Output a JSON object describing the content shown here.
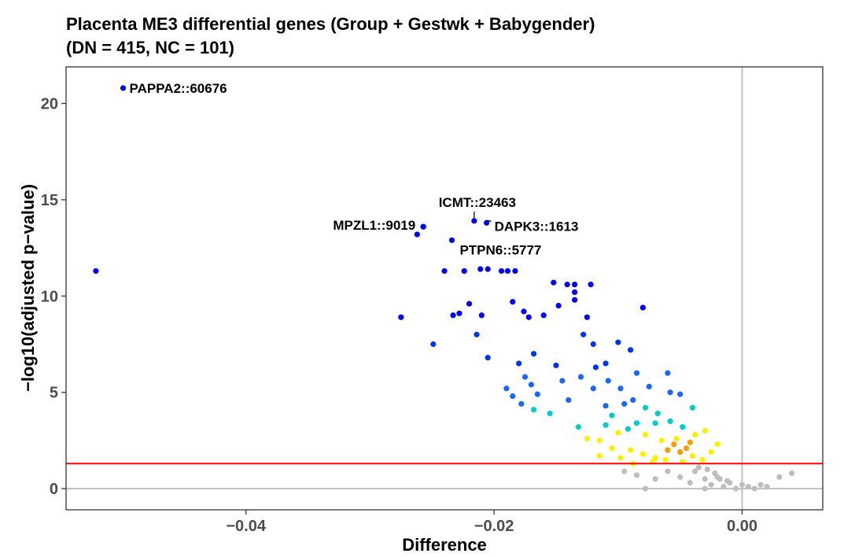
{
  "chart_data": {
    "type": "scatter",
    "title": [
      "Placenta ME3 differential genes (Group + Gestwk + Babygender)",
      "(DN = 415, NC = 101)"
    ],
    "xlabel": "Difference",
    "ylabel": "−log10(adjusted p−value)",
    "xlim": [
      -0.0545,
      0.0065
    ],
    "ylim": [
      -1.1,
      21.9
    ],
    "x_ticks": [
      -0.04,
      -0.02,
      0.0
    ],
    "x_tick_labels": [
      "−0.04",
      "−0.02",
      "0.00"
    ],
    "y_ticks": [
      0,
      5,
      10,
      15,
      20
    ],
    "y_tick_labels": [
      "0",
      "5",
      "10",
      "15",
      "20"
    ],
    "significance_threshold": 1.3,
    "reference_lines": {
      "x": 0,
      "y": 0
    },
    "labeled_points": [
      {
        "label": "PAPPA2::60676",
        "x": -0.0499,
        "y": 20.8
      },
      {
        "label": "ICMT::23463",
        "x": -0.0216,
        "y": 13.9
      },
      {
        "label": "MPZL1::9019",
        "x": -0.0257,
        "y": 13.6
      },
      {
        "label": "DAPK3::1613",
        "x": -0.0206,
        "y": 13.8
      },
      {
        "label": "PTPN6::5777",
        "x": -0.0234,
        "y": 12.9
      }
    ],
    "points": [
      [
        -0.0521,
        11.3
      ],
      [
        -0.0275,
        8.9
      ],
      [
        -0.0262,
        13.2
      ],
      [
        -0.0257,
        13.6
      ],
      [
        -0.0249,
        7.5
      ],
      [
        -0.024,
        11.3
      ],
      [
        -0.0233,
        9.0
      ],
      [
        -0.0228,
        9.1
      ],
      [
        -0.0224,
        11.3
      ],
      [
        -0.022,
        9.6
      ],
      [
        -0.0214,
        8.0
      ],
      [
        -0.021,
        9.0
      ],
      [
        -0.0205,
        6.8
      ],
      [
        -0.0211,
        11.4
      ],
      [
        -0.0205,
        11.4
      ],
      [
        -0.0194,
        11.3
      ],
      [
        -0.0189,
        11.3
      ],
      [
        -0.0183,
        11.3
      ],
      [
        -0.0185,
        9.7
      ],
      [
        -0.019,
        5.2
      ],
      [
        -0.0185,
        4.8
      ],
      [
        -0.0176,
        9.2
      ],
      [
        -0.0172,
        8.9
      ],
      [
        -0.0168,
        7.0
      ],
      [
        -0.018,
        6.5
      ],
      [
        -0.0175,
        5.8
      ],
      [
        -0.017,
        5.4
      ],
      [
        -0.0165,
        4.9
      ],
      [
        -0.0178,
        4.4
      ],
      [
        -0.0168,
        4.1
      ],
      [
        -0.016,
        9.0
      ],
      [
        -0.0152,
        10.7
      ],
      [
        -0.0148,
        9.5
      ],
      [
        -0.0141,
        10.6
      ],
      [
        -0.0135,
        10.6
      ],
      [
        -0.0135,
        10.2
      ],
      [
        -0.0135,
        9.8
      ],
      [
        -0.0122,
        10.6
      ],
      [
        -0.0128,
        8.0
      ],
      [
        -0.0125,
        8.9
      ],
      [
        -0.012,
        7.5
      ],
      [
        -0.011,
        6.5
      ],
      [
        -0.01,
        7.6
      ],
      [
        -0.009,
        7.2
      ],
      [
        -0.008,
        9.4
      ],
      [
        -0.015,
        6.4
      ],
      [
        -0.0145,
        5.6
      ],
      [
        -0.0155,
        3.9
      ],
      [
        -0.014,
        4.6
      ],
      [
        -0.0132,
        3.2
      ],
      [
        -0.0125,
        2.6
      ],
      [
        -0.0115,
        1.7
      ],
      [
        -0.0105,
        3.8
      ],
      [
        -0.0095,
        4.4
      ],
      [
        -0.0085,
        6.0
      ],
      [
        -0.0075,
        5.3
      ],
      [
        -0.006,
        6.0
      ],
      [
        -0.0058,
        5.0
      ],
      [
        -0.005,
        4.9
      ],
      [
        -0.004,
        4.2
      ],
      [
        -0.003,
        3.0
      ],
      [
        -0.002,
        2.3
      ],
      [
        -0.0025,
        1.9
      ],
      [
        -0.0032,
        1.5
      ],
      [
        -0.004,
        1.7
      ],
      [
        -0.0045,
        2.1
      ],
      [
        -0.005,
        1.9
      ],
      [
        -0.0055,
        2.3
      ],
      [
        -0.006,
        2.0
      ],
      [
        -0.0065,
        2.5
      ],
      [
        -0.007,
        1.6
      ],
      [
        -0.0048,
        1.4
      ],
      [
        -0.0042,
        2.4
      ],
      [
        -0.0053,
        2.6
      ],
      [
        -0.0062,
        1.5
      ],
      [
        -0.007,
        3.4
      ],
      [
        -0.0078,
        2.8
      ],
      [
        -0.0085,
        3.4
      ],
      [
        -0.0092,
        3.1
      ],
      [
        -0.01,
        2.9
      ],
      [
        -0.011,
        3.3
      ],
      [
        -0.0115,
        2.5
      ],
      [
        -0.0105,
        2.1
      ],
      [
        -0.009,
        2.0
      ],
      [
        -0.008,
        1.8
      ],
      [
        -0.0072,
        1.4
      ],
      [
        -0.0088,
        1.3
      ],
      [
        -0.0098,
        1.6
      ],
      [
        -0.011,
        4.3
      ],
      [
        -0.012,
        5.2
      ],
      [
        -0.013,
        5.8
      ],
      [
        -0.0118,
        6.3
      ],
      [
        -0.0108,
        5.6
      ],
      [
        -0.0098,
        5.2
      ],
      [
        -0.0088,
        4.6
      ],
      [
        -0.0078,
        4.2
      ],
      [
        -0.0068,
        3.9
      ],
      [
        -0.0058,
        3.5
      ],
      [
        -0.0048,
        3.2
      ],
      [
        -0.0038,
        2.8
      ],
      [
        -0.0095,
        0.9
      ],
      [
        -0.0085,
        0.7
      ],
      [
        -0.007,
        0.5
      ],
      [
        -0.006,
        0.9
      ],
      [
        -0.005,
        0.6
      ],
      [
        -0.0042,
        0.3
      ],
      [
        -0.0038,
        0.9
      ],
      [
        -0.003,
        0.5
      ],
      [
        -0.0025,
        0.2
      ],
      [
        -0.002,
        0.6
      ],
      [
        -0.0015,
        0.1
      ],
      [
        -0.001,
        0.3
      ],
      [
        -0.0005,
        0.0
      ],
      [
        0.0,
        0.2
      ],
      [
        0.0005,
        0.1
      ],
      [
        0.001,
        0.0
      ],
      [
        0.0015,
        0.2
      ],
      [
        0.002,
        0.1
      ],
      [
        0.003,
        0.6
      ],
      [
        0.004,
        0.8
      ],
      [
        -0.0035,
        1.1
      ],
      [
        -0.0028,
        1.0
      ],
      [
        -0.0022,
        0.8
      ],
      [
        -0.0018,
        0.5
      ],
      [
        -0.0012,
        0.4
      ],
      [
        -0.003,
        0.0
      ],
      [
        -0.0078,
        0.0
      ]
    ]
  }
}
